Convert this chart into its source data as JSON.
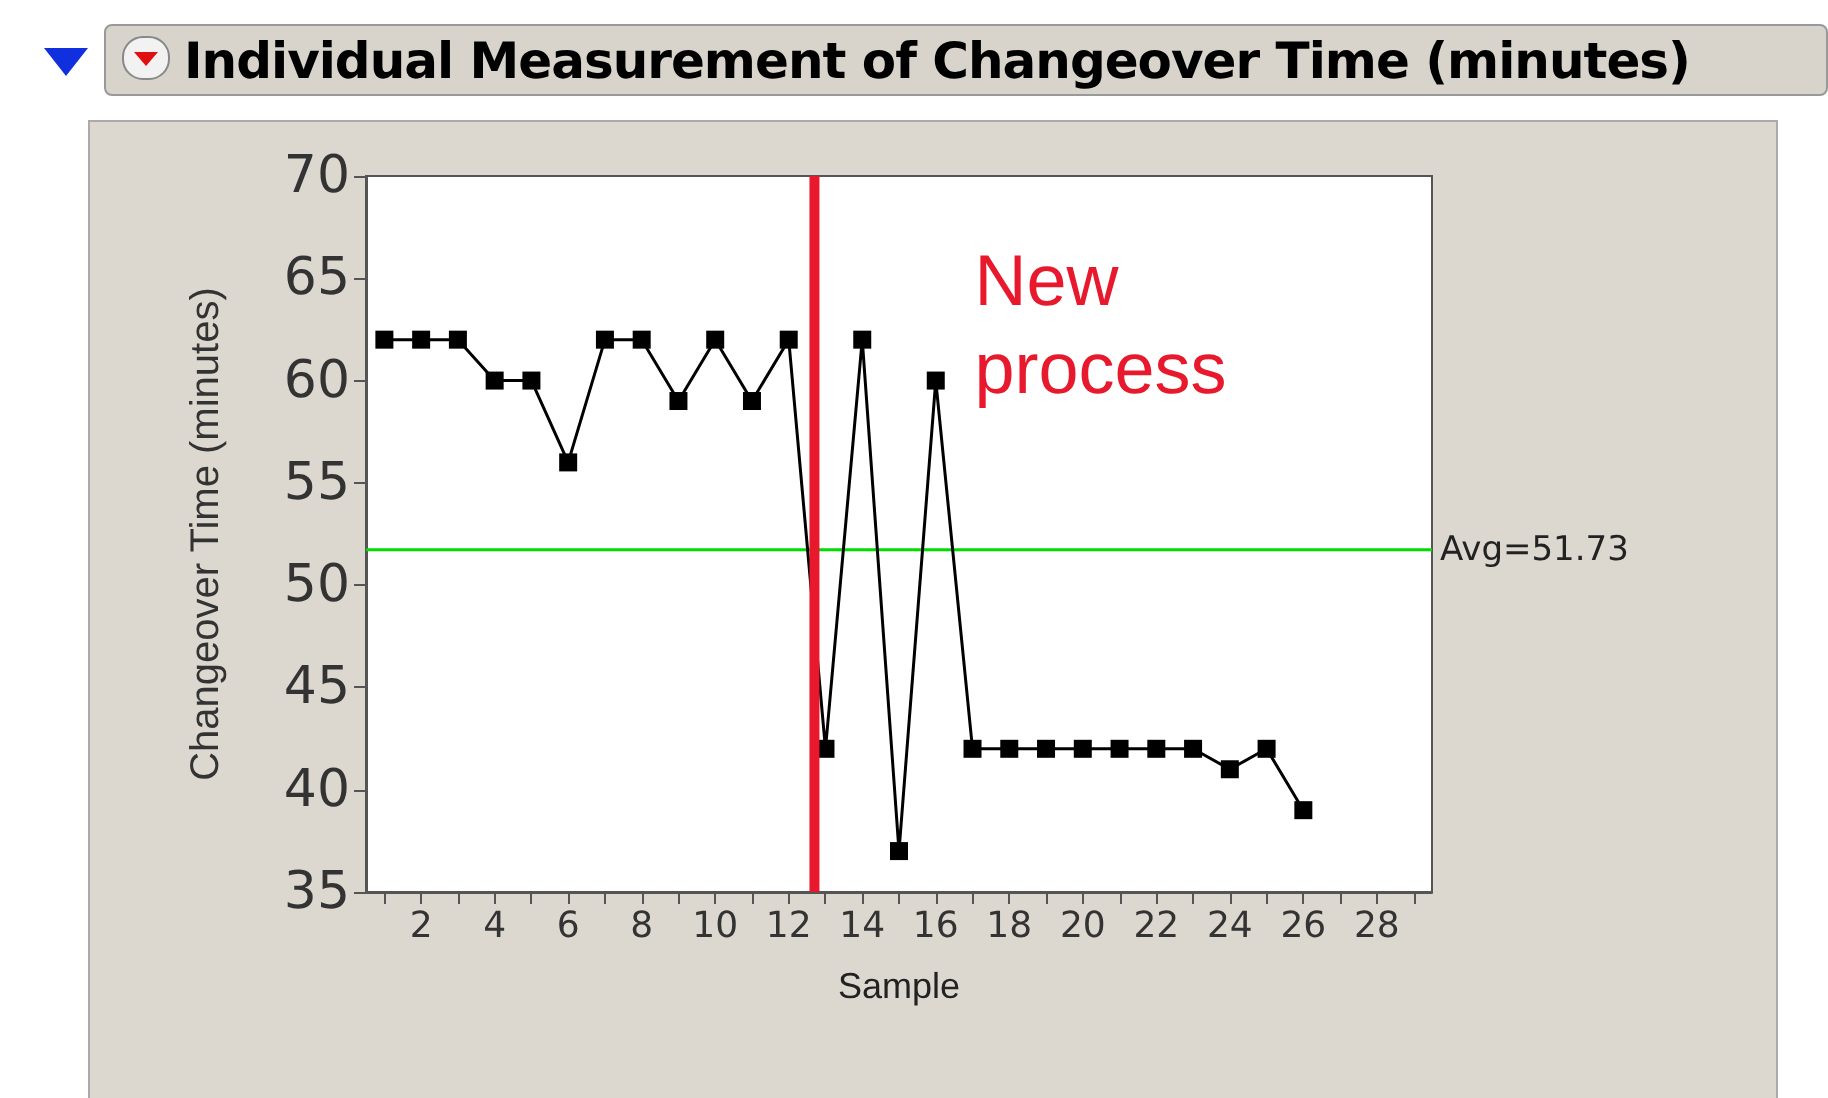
{
  "chart_data": {
    "type": "line",
    "title": "Individual Measurement of Changeover Time (minutes)",
    "xlabel": "Sample",
    "ylabel": "Changeover Time (minutes)",
    "x": [
      1,
      2,
      3,
      4,
      5,
      6,
      7,
      8,
      9,
      10,
      11,
      12,
      13,
      14,
      15,
      16,
      17,
      18,
      19,
      20,
      21,
      22,
      23,
      24,
      25,
      26
    ],
    "series": [
      {
        "color": "#000000",
        "values": [
          62,
          62,
          62,
          60,
          60,
          56,
          62,
          62,
          59,
          62,
          59,
          62,
          42,
          62,
          37,
          60,
          42,
          42,
          42,
          42,
          42,
          42,
          42,
          41,
          42,
          39
        ]
      }
    ],
    "xlim": [
      0.5,
      29.5
    ],
    "xticks": [
      {
        "value": 1,
        "label": null
      },
      2,
      {
        "value": 3,
        "label": null
      },
      4,
      {
        "value": 5,
        "label": null
      },
      6,
      {
        "value": 7,
        "label": null
      },
      8,
      {
        "value": 9,
        "label": null
      },
      10,
      {
        "value": 11,
        "label": null
      },
      12,
      {
        "value": 13,
        "label": null
      },
      14,
      {
        "value": 15,
        "label": null
      },
      16,
      {
        "value": 17,
        "label": null
      },
      18,
      {
        "value": 19,
        "label": null
      },
      20,
      {
        "value": 21,
        "label": null
      },
      22,
      {
        "value": 23,
        "label": null
      },
      24,
      {
        "value": 25,
        "label": null
      },
      26,
      {
        "value": 27,
        "label": null
      },
      28,
      {
        "value": 29,
        "label": null
      }
    ],
    "ylim": [
      35,
      70
    ],
    "yticks": [
      35,
      40,
      45,
      50,
      55,
      60,
      65,
      70
    ],
    "ref_lines": [
      {
        "axis": "y",
        "value": 51.73,
        "label": "Avg=51.73",
        "color": "#00dd00"
      },
      {
        "axis": "x",
        "value": 12.7,
        "label": "New process",
        "color": "#e8192c"
      }
    ],
    "grid": false,
    "marker": "square",
    "line_style": "solid"
  }
}
